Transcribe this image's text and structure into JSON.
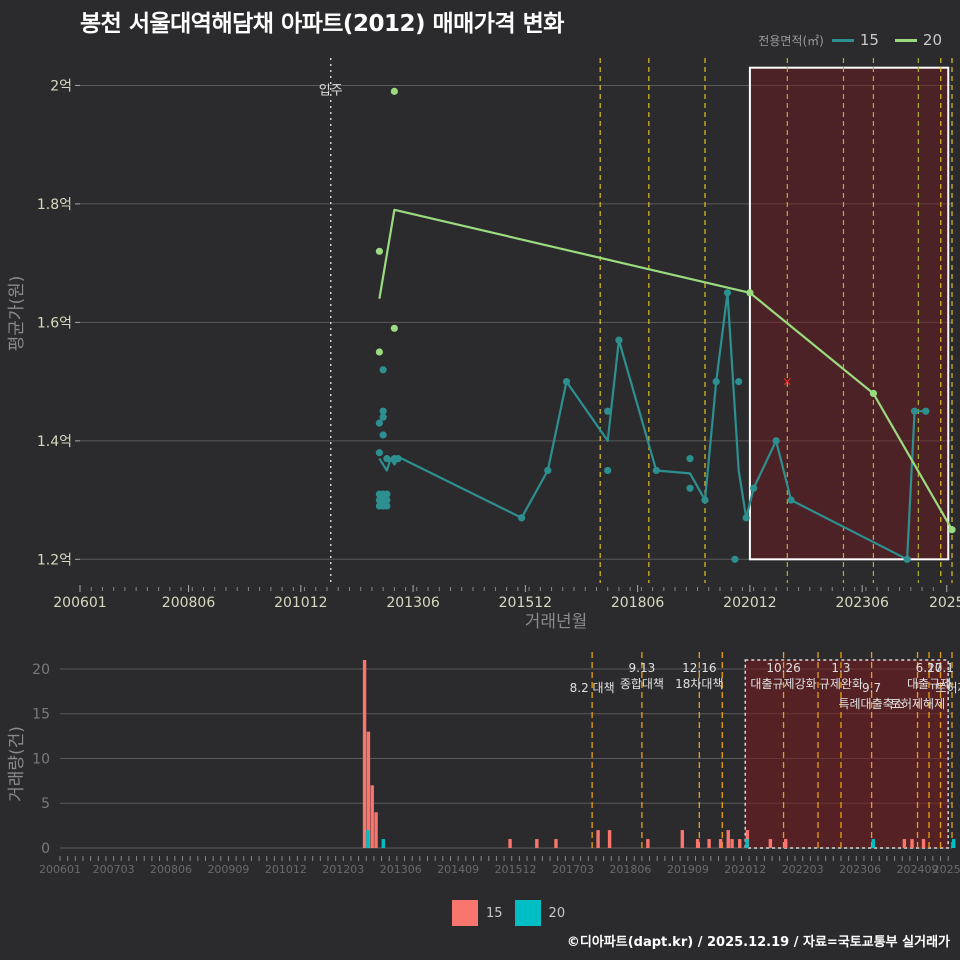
{
  "title": "봉천 서울대역해담채 아파트(2012) 매매가격 변화",
  "legend": {
    "title": "전용면적(㎡)",
    "items": [
      {
        "label": "15",
        "color": "#2e8f90",
        "bar_color": "#f8766d"
      },
      {
        "label": "20",
        "color": "#9bdb80",
        "bar_color": "#00bfc4"
      }
    ]
  },
  "footer": "©디아파트(dapt.kr) / 2025.12.19 / 자료=국토교통부 실거래가",
  "chart_data": [
    {
      "type": "line",
      "title": "봉천 서울대역해담채 아파트(2012) 매매가격 변화",
      "xlabel": "거래년월",
      "ylabel": "평균가(원)",
      "xlim": [
        "2006-01",
        "2025-06"
      ],
      "ylim": [
        1.16,
        2.07
      ],
      "x_ticks": [
        "200601",
        "200806",
        "201012",
        "201306",
        "201512",
        "201806",
        "202012",
        "202306",
        "2025"
      ],
      "y_ticks": [
        {
          "value": 1.2,
          "label": "1.2억"
        },
        {
          "value": 1.4,
          "label": "1.4억"
        },
        {
          "value": 1.6,
          "label": "1.6억"
        },
        {
          "value": 1.8,
          "label": "1.8억"
        },
        {
          "value": 2.0,
          "label": "2억"
        }
      ],
      "events": [
        {
          "date": "2011-08",
          "label": "입주",
          "style": "dotted",
          "color": "#cccccc"
        }
      ],
      "policy_lines": [
        {
          "date": "2017-08",
          "color": "#e0c020"
        },
        {
          "date": "2018-09",
          "color": "#e0c020"
        },
        {
          "date": "2019-12",
          "color": "#e0c020"
        },
        {
          "date": "2021-10",
          "color": "#a8b820"
        },
        {
          "date": "2023-01",
          "color": "#a8b820"
        },
        {
          "date": "2023-09",
          "color": "#a8b820"
        },
        {
          "date": "2024-09",
          "color": "#a8b820"
        },
        {
          "date": "2025-03",
          "color": "#e0c020"
        },
        {
          "date": "2025-06",
          "color": "#e0c020"
        }
      ],
      "highlight_box": {
        "from": "2020-12",
        "to": "2025-05",
        "y_from": 1.2,
        "y_to": 2.03
      },
      "marker_x": {
        "date": "2021-10",
        "value": 1.5
      },
      "series": [
        {
          "name": "15",
          "line": [
            [
              "2012-09",
              1.37
            ],
            [
              "2012-10",
              1.36
            ],
            [
              "2012-11",
              1.35
            ],
            [
              "2012-12",
              1.37
            ],
            [
              "2013-01",
              1.36
            ],
            [
              "2013-02",
              1.37
            ],
            [
              "2013-03",
              1.37
            ],
            [
              "2015-11",
              1.27
            ],
            [
              "2016-06",
              1.35
            ],
            [
              "2016-11",
              1.5
            ],
            [
              "2017-10",
              1.4
            ],
            [
              "2018-01",
              1.57
            ],
            [
              "2018-11",
              1.35
            ],
            [
              "2019-08",
              1.345
            ],
            [
              "2019-12",
              1.3
            ],
            [
              "2020-03",
              1.5
            ],
            [
              "2020-06",
              1.65
            ],
            [
              "2020-09",
              1.35
            ],
            [
              "2020-11",
              1.27
            ],
            [
              "2021-01",
              1.32
            ],
            [
              "2021-07",
              1.4
            ],
            [
              "2021-11",
              1.3
            ],
            [
              "2024-06",
              1.2
            ],
            [
              "2024-08",
              1.45
            ],
            [
              "2024-11",
              1.45
            ]
          ],
          "points": [
            [
              "2012-09",
              1.29
            ],
            [
              "2012-09",
              1.3
            ],
            [
              "2012-09",
              1.31
            ],
            [
              "2012-10",
              1.29
            ],
            [
              "2012-10",
              1.3
            ],
            [
              "2012-10",
              1.31
            ],
            [
              "2012-11",
              1.29
            ],
            [
              "2012-11",
              1.3
            ],
            [
              "2012-11",
              1.31
            ],
            [
              "2012-09",
              1.38
            ],
            [
              "2012-09",
              1.43
            ],
            [
              "2012-10",
              1.41
            ],
            [
              "2012-10",
              1.44
            ],
            [
              "2012-10",
              1.45
            ],
            [
              "2012-10",
              1.52
            ],
            [
              "2012-11",
              1.37
            ],
            [
              "2013-01",
              1.37
            ],
            [
              "2013-02",
              1.37
            ],
            [
              "2015-11",
              1.27
            ],
            [
              "2016-06",
              1.35
            ],
            [
              "2016-11",
              1.5
            ],
            [
              "2017-10",
              1.45
            ],
            [
              "2017-10",
              1.35
            ],
            [
              "2018-01",
              1.57
            ],
            [
              "2018-11",
              1.35
            ],
            [
              "2019-08",
              1.37
            ],
            [
              "2019-08",
              1.32
            ],
            [
              "2019-12",
              1.3
            ],
            [
              "2020-03",
              1.5
            ],
            [
              "2020-06",
              1.65
            ],
            [
              "2020-08",
              1.2
            ],
            [
              "2020-09",
              1.5
            ],
            [
              "2020-11",
              1.27
            ],
            [
              "2021-01",
              1.32
            ],
            [
              "2021-07",
              1.4
            ],
            [
              "2021-11",
              1.3
            ],
            [
              "2024-06",
              1.2
            ],
            [
              "2024-08",
              1.45
            ],
            [
              "2024-11",
              1.45
            ]
          ]
        },
        {
          "name": "20",
          "line": [
            [
              "2012-09",
              1.64
            ],
            [
              "2013-01",
              1.79
            ],
            [
              "2020-12",
              1.65
            ],
            [
              "2023-09",
              1.48
            ],
            [
              "2025-06",
              1.25
            ]
          ],
          "points": [
            [
              "2012-09",
              1.72
            ],
            [
              "2012-09",
              1.55
            ],
            [
              "2013-01",
              1.99
            ],
            [
              "2013-01",
              1.59
            ],
            [
              "2020-12",
              1.65
            ],
            [
              "2023-09",
              1.48
            ],
            [
              "2025-06",
              1.25
            ]
          ]
        }
      ]
    },
    {
      "type": "bar",
      "ylabel": "거래량(건)",
      "ylim": [
        0,
        21
      ],
      "y_ticks": [
        0,
        5,
        10,
        15,
        20
      ],
      "x_ticks": [
        "200601",
        "200703",
        "200806",
        "200909",
        "201012",
        "201203",
        "201306",
        "201409",
        "201512",
        "201703",
        "201806",
        "201909",
        "202012",
        "202203",
        "202306",
        "202409",
        "2025"
      ],
      "highlight_box": {
        "from": "2020-12",
        "to": "2025-05",
        "y_to": 21
      },
      "policy_lines": [
        {
          "date": "2017-08",
          "color": "#e8a010"
        },
        {
          "date": "2018-09",
          "color": "#e8a010"
        },
        {
          "date": "2019-12",
          "color": "#e8a010"
        },
        {
          "date": "2020-06",
          "color": "#e8a010"
        },
        {
          "date": "2021-10",
          "color": "#e8a010"
        },
        {
          "date": "2022-07",
          "color": "#e8a010"
        },
        {
          "date": "2023-01",
          "color": "#e8a010"
        },
        {
          "date": "2023-09",
          "color": "#e8a010"
        },
        {
          "date": "2024-09",
          "color": "#e8a010"
        },
        {
          "date": "2024-12",
          "color": "#e8a010"
        },
        {
          "date": "2025-03",
          "color": "#e8a010"
        },
        {
          "date": "2025-06",
          "color": "#e8a010"
        }
      ],
      "annotations": [
        {
          "date": "2017-08",
          "lines": [
            "8.2 대책"
          ],
          "row": 2
        },
        {
          "date": "2018-09",
          "lines": [
            "9.13",
            "종합대책"
          ],
          "row": 1
        },
        {
          "date": "2019-12",
          "lines": [
            "12.16",
            "18차대책"
          ],
          "row": 1
        },
        {
          "date": "2021-10",
          "lines": [
            "10.26",
            "대출규제강화"
          ],
          "row": 1
        },
        {
          "date": "2023-01",
          "lines": [
            "1.3",
            "규제완화"
          ],
          "row": 1
        },
        {
          "date": "2023-09",
          "lines": [
            "9.7",
            "특례대출축소"
          ],
          "row": 2
        },
        {
          "date": "2024-09",
          "lines": [
            "토허제해제"
          ],
          "row": 3
        },
        {
          "date": "2024-12",
          "lines": [
            "6.27",
            "대출규제"
          ],
          "row": 1
        },
        {
          "date": "2025-03",
          "lines": [
            "10.1"
          ],
          "row": 1
        },
        {
          "date": "2025-06",
          "lines": [
            "토허제"
          ],
          "row": 2
        }
      ],
      "series": [
        {
          "name": "15",
          "values": [
            [
              "2012-09",
              21
            ],
            [
              "2012-10",
              13
            ],
            [
              "2012-11",
              7
            ],
            [
              "2012-12",
              4
            ],
            [
              "2015-11",
              1
            ],
            [
              "2016-06",
              1
            ],
            [
              "2016-11",
              1
            ],
            [
              "2017-10",
              2
            ],
            [
              "2018-01",
              2
            ],
            [
              "2018-11",
              1
            ],
            [
              "2019-08",
              2
            ],
            [
              "2019-12",
              1
            ],
            [
              "2020-03",
              1
            ],
            [
              "2020-06",
              1
            ],
            [
              "2020-08",
              2
            ],
            [
              "2020-09",
              1
            ],
            [
              "2020-11",
              1
            ],
            [
              "2021-01",
              2
            ],
            [
              "2021-07",
              1
            ],
            [
              "2021-11",
              1
            ],
            [
              "2024-06",
              1
            ],
            [
              "2024-08",
              1
            ],
            [
              "2024-11",
              1
            ]
          ]
        },
        {
          "name": "20",
          "values": [
            [
              "2012-09",
              2
            ],
            [
              "2013-01",
              1
            ],
            [
              "2020-12",
              1
            ],
            [
              "2023-09",
              1
            ],
            [
              "2025-06",
              1
            ]
          ]
        }
      ]
    }
  ]
}
